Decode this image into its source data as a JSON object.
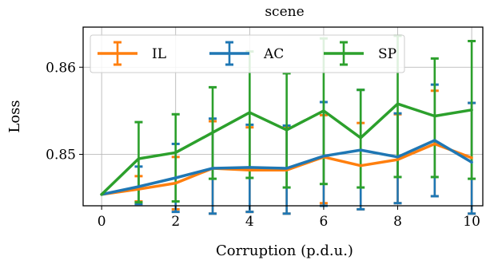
{
  "chart_data": {
    "type": "line",
    "title": "scene",
    "xlabel": "Corruption (p.d.u.)",
    "ylabel": "Loss",
    "xlim": [
      -0.5,
      10.3
    ],
    "ylim": [
      0.8441,
      0.8646
    ],
    "xticks": [
      0,
      2,
      4,
      6,
      8,
      10
    ],
    "yticks": [
      0.85,
      0.86
    ],
    "ytick_labels": [
      "0.85",
      "0.86"
    ],
    "grid": true,
    "legend_position": "top",
    "x": [
      0,
      1,
      2,
      3,
      4,
      5,
      6,
      7,
      8,
      9,
      10
    ],
    "series": [
      {
        "name": "IL",
        "color": "#ff7f0e",
        "values": [
          0.8454,
          0.846,
          0.8467,
          0.8484,
          0.8482,
          0.8482,
          0.8497,
          0.8487,
          0.8494,
          0.8512,
          0.8496
        ],
        "err_low": [
          0.8454,
          0.8446,
          0.8437,
          0.8432,
          0.8434,
          0.8432,
          0.8444,
          0.8437,
          0.8444,
          0.8452,
          0.8432
        ],
        "err_high": [
          0.8454,
          0.8475,
          0.8497,
          0.8538,
          0.8531,
          0.8531,
          0.8545,
          0.8536,
          0.8546,
          0.8573,
          0.8559
        ]
      },
      {
        "name": "AC",
        "color": "#1f77b4",
        "values": [
          0.8454,
          0.8463,
          0.8473,
          0.8484,
          0.8485,
          0.8484,
          0.8498,
          0.8505,
          0.8497,
          0.8516,
          0.8491
        ],
        "err_low": [
          0.8454,
          0.8443,
          0.8434,
          0.8432,
          0.8434,
          0.8432,
          0.8441,
          0.8437,
          0.8444,
          0.8452,
          0.8432
        ],
        "err_high": [
          0.8454,
          0.8486,
          0.8512,
          0.8541,
          0.8534,
          0.8533,
          0.856,
          0.8574,
          0.8547,
          0.858,
          0.8559
        ]
      },
      {
        "name": "SP",
        "color": "#2ca02c",
        "values": [
          0.8454,
          0.8495,
          0.8502,
          0.8525,
          0.8548,
          0.8528,
          0.855,
          0.8519,
          0.8558,
          0.8544,
          0.8551
        ],
        "err_low": [
          0.8454,
          0.8445,
          0.8446,
          0.8472,
          0.8473,
          0.8462,
          0.8466,
          0.8462,
          0.8474,
          0.8474,
          0.8472
        ],
        "err_high": [
          0.8454,
          0.8537,
          0.8546,
          0.8577,
          0.8618,
          0.8593,
          0.8633,
          0.8574,
          0.8636,
          0.861,
          0.863
        ]
      }
    ]
  }
}
